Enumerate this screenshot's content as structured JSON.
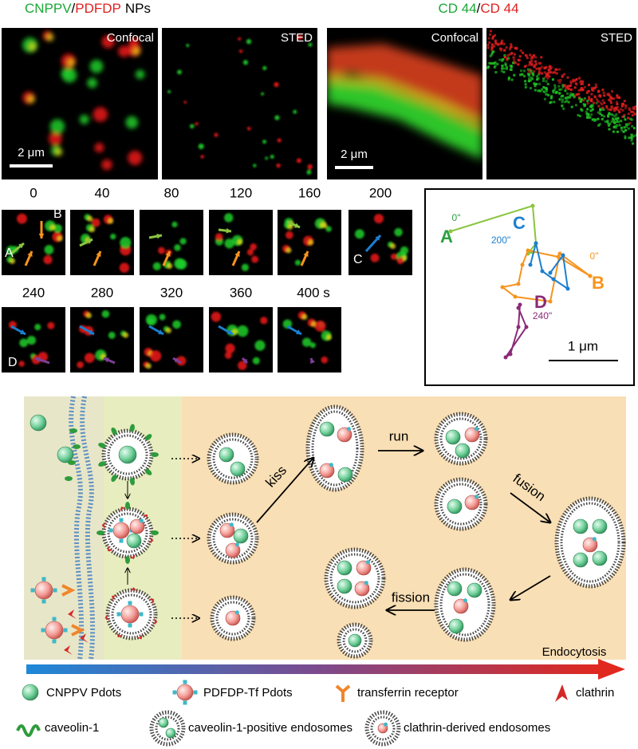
{
  "figure_a": {
    "title_parts": [
      "CNPPV",
      "/",
      "PDFDP",
      "NPs"
    ],
    "panels": [
      "Confocal",
      "STED"
    ],
    "scale_bar": "2 μm"
  },
  "figure_b": {
    "title_parts": [
      "CD 44",
      "/",
      "CD 44"
    ],
    "panels": [
      "Confocal",
      "STED"
    ],
    "scale_bar": "2 μm"
  },
  "time_series": {
    "times": [
      "0",
      "40",
      "80",
      "120",
      "160",
      "200",
      "240",
      "280",
      "320",
      "360",
      "400 s"
    ],
    "frame_labels": [
      "A",
      "B",
      "C",
      "D"
    ]
  },
  "trajectory": {
    "labels": [
      "0\"",
      "A",
      "C",
      "200\"",
      "0\"",
      "B",
      "D",
      "240\""
    ],
    "scale_bar": "1 μm"
  },
  "diagram": {
    "steps": [
      "kiss",
      "run",
      "fusion",
      "fission"
    ],
    "axis_label": "Endocytosis"
  },
  "legend": [
    "CNPPV Pdots",
    "PDFDP-Tf Pdots",
    "transferrin receptor",
    "clathrin",
    "caveolin-1",
    "caveolin-1-positive endosomes",
    "clathrin-derived endosomes"
  ]
}
